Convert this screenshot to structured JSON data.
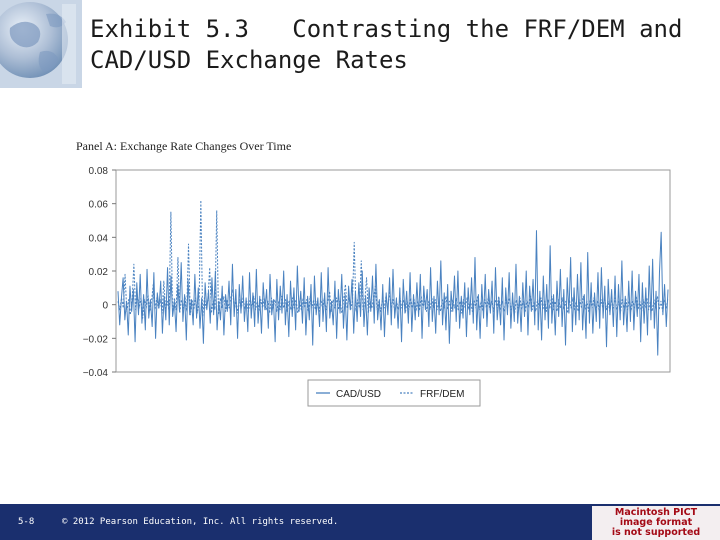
{
  "slide": {
    "title_line1": "Exhibit 5.3   Contrasting the FRF/DEM and",
    "title_line2": "CAD/USD Exchange Rates",
    "slide_number": "5-8",
    "copyright": "© 2012 Pearson Education, Inc. All rights reserved.",
    "pict_notice": [
      "Macintosh PICT",
      "image format",
      "is not supported"
    ]
  },
  "colors": {
    "footer_bg": "#1a2f6e",
    "series_color": "#4a82c0",
    "pict_text": "#a40a16"
  },
  "chart_data": {
    "type": "line",
    "title": "Panel A: Exchange Rate Changes Over Time",
    "xlabel": "",
    "ylabel": "",
    "ylim": [
      -0.04,
      0.08
    ],
    "yticks": [
      0.08,
      0.06,
      0.04,
      0.02,
      0,
      -0.02,
      -0.04
    ],
    "ytick_labels": [
      "0.08",
      "0.06",
      "0.04",
      "0.02",
      "0",
      "−0.02",
      "−0.04"
    ],
    "grid": false,
    "legend_position": "bottom-center",
    "series": [
      {
        "name": "CAD/USD",
        "style": "solid",
        "values": [
          0.008,
          -0.012,
          0.004,
          0.016,
          -0.009,
          0.002,
          -0.018,
          0.011,
          -0.004,
          0.009,
          -0.022,
          0.013,
          -0.006,
          0.018,
          -0.011,
          0.006,
          -0.015,
          0.021,
          -0.008,
          0.003,
          -0.013,
          0.019,
          -0.02,
          0.007,
          -0.002,
          0.014,
          -0.017,
          0.005,
          -0.009,
          0.022,
          -0.012,
          0.017,
          -0.007,
          0.002,
          -0.016,
          0.012,
          -0.004,
          0.025,
          -0.01,
          0.006,
          -0.021,
          0.015,
          -0.006,
          0.003,
          -0.012,
          0.018,
          -0.008,
          0.01,
          -0.014,
          0.004,
          -0.023,
          0.013,
          -0.003,
          0.008,
          -0.011,
          0.016,
          -0.006,
          0.02,
          -0.015,
          0.002,
          -0.009,
          0.011,
          -0.018,
          0.006,
          -0.004,
          0.014,
          -0.012,
          0.024,
          -0.007,
          0.009,
          -0.02,
          0.012,
          -0.005,
          0.017,
          -0.01,
          0.004,
          -0.016,
          0.019,
          -0.008,
          0.007,
          -0.013,
          0.021,
          -0.011,
          0.005,
          -0.017,
          0.013,
          -0.003,
          0.009,
          -0.014,
          0.018,
          -0.006,
          0.003,
          -0.022,
          0.015,
          -0.009,
          0.011,
          -0.005,
          0.02,
          -0.012,
          0.006,
          -0.019,
          0.014,
          -0.007,
          0.01,
          -0.015,
          0.023,
          -0.004,
          0.008,
          -0.011,
          0.016,
          -0.018,
          0.005,
          -0.009,
          0.012,
          -0.024,
          0.017,
          -0.006,
          0.004,
          -0.013,
          0.019,
          -0.01,
          0.007,
          -0.016,
          0.022,
          -0.008,
          0.002,
          -0.012,
          0.014,
          -0.02,
          0.009,
          -0.005,
          0.018,
          -0.014,
          0.006,
          -0.021,
          0.011,
          -0.003,
          0.015,
          -0.017,
          0.008,
          -0.01,
          0.013,
          -0.007,
          0.02,
          -0.013,
          0.005,
          -0.018,
          0.01,
          -0.004,
          0.017,
          -0.011,
          0.024,
          -0.009,
          0.003,
          -0.015,
          0.012,
          -0.019,
          0.007,
          -0.006,
          0.016,
          -0.012,
          0.021,
          -0.008,
          0.004,
          -0.014,
          0.01,
          -0.022,
          0.015,
          -0.005,
          0.008,
          -0.011,
          0.019,
          -0.016,
          0.006,
          -0.009,
          0.013,
          -0.007,
          0.018,
          -0.02,
          0.011,
          -0.003,
          0.009,
          -0.013,
          0.022,
          -0.01,
          0.005,
          -0.017,
          0.014,
          -0.006,
          0.026,
          -0.012,
          0.007,
          -0.015,
          0.012,
          -0.023,
          0.008,
          -0.004,
          0.017,
          -0.01,
          0.02,
          -0.014,
          0.005,
          -0.008,
          0.013,
          -0.019,
          0.01,
          -0.006,
          0.016,
          -0.011,
          0.028,
          -0.015,
          0.006,
          -0.02,
          0.012,
          -0.008,
          0.018,
          -0.013,
          0.009,
          -0.005,
          0.014,
          -0.017,
          0.022,
          -0.009,
          0.004,
          -0.012,
          0.016,
          -0.021,
          0.01,
          -0.006,
          0.019,
          -0.014,
          0.007,
          -0.01,
          0.024,
          -0.011,
          0.005,
          -0.016,
          0.013,
          -0.007,
          0.02,
          -0.018,
          0.011,
          -0.004,
          0.015,
          -0.012,
          0.044,
          -0.015,
          0.008,
          -0.021,
          0.017,
          -0.009,
          0.012,
          -0.014,
          0.035,
          -0.011,
          0.006,
          -0.018,
          0.014,
          -0.007,
          0.021,
          -0.013,
          0.009,
          -0.024,
          0.016,
          -0.005,
          0.028,
          -0.016,
          0.01,
          -0.012,
          0.018,
          -0.009,
          0.025,
          -0.015,
          0.006,
          -0.02,
          0.031,
          -0.011,
          0.013,
          -0.017,
          0.007,
          -0.01,
          0.019,
          -0.014,
          0.022,
          -0.008,
          0.011,
          -0.025,
          0.015,
          -0.006,
          0.009,
          -0.013,
          0.017,
          -0.019,
          0.012,
          -0.009,
          0.026,
          -0.012,
          0.005,
          -0.016,
          0.014,
          -0.01,
          0.02,
          -0.015,
          0.008,
          -0.007,
          0.018,
          -0.022,
          0.013,
          -0.011,
          0.01,
          -0.018,
          0.023,
          -0.009,
          0.027,
          -0.014,
          0.008,
          -0.03,
          0.019,
          0.043,
          -0.006,
          0.012,
          -0.013,
          0.009
        ]
      },
      {
        "name": "FRF/DEM",
        "style": "dashed",
        "values": [
          0.002,
          -0.003,
          0.004,
          -0.002,
          0.018,
          -0.004,
          0.003,
          -0.006,
          0.002,
          0.024,
          -0.003,
          0.005,
          -0.002,
          0.004,
          -0.008,
          0.003,
          -0.002,
          0.006,
          -0.004,
          0.002,
          0.012,
          -0.003,
          0.004,
          -0.002,
          0.003,
          -0.005,
          0.014,
          -0.003,
          0.002,
          -0.004,
          0.055,
          -0.006,
          0.004,
          -0.003,
          0.028,
          -0.005,
          0.003,
          -0.002,
          0.005,
          -0.004,
          0.036,
          -0.006,
          0.003,
          -0.003,
          0.004,
          -0.005,
          0.002,
          0.062,
          -0.007,
          0.004,
          -0.002,
          0.003,
          0.022,
          -0.005,
          0.003,
          -0.003,
          0.056,
          -0.006,
          0.004,
          -0.002,
          0.005,
          -0.004,
          0.003,
          -0.002,
          0.004,
          0.009,
          -0.003,
          0.002,
          -0.005,
          0.003,
          -0.002,
          0.004,
          -0.003,
          0.002,
          -0.004,
          0.003,
          -0.002,
          0.005,
          -0.003,
          0.002,
          -0.004,
          0.003,
          -0.002,
          0.004,
          -0.003,
          0.002,
          -0.005,
          0.004,
          -0.002,
          0.003,
          -0.004,
          0.002,
          -0.003,
          0.005,
          -0.002,
          0.003,
          -0.004,
          0.002,
          -0.003,
          0.004,
          -0.002,
          0.003,
          -0.005,
          0.002,
          -0.003,
          0.004,
          -0.002,
          0.003,
          -0.004,
          0.005,
          -0.002,
          0.003,
          -0.003,
          0.002,
          -0.004,
          0.003,
          -0.002,
          0.004,
          -0.003,
          0.002,
          0.008,
          -0.004,
          0.003,
          -0.002,
          0.004,
          -0.003,
          0.002,
          -0.005,
          0.003,
          0.012,
          -0.002,
          0.004,
          -0.003,
          0.002,
          0.037,
          -0.004,
          0.003,
          -0.002,
          0.026,
          -0.003,
          0.002,
          0.016,
          -0.005,
          0.003,
          -0.002,
          0.004,
          0.011,
          -0.003,
          0.002,
          -0.004,
          0.003,
          -0.002,
          0.005,
          -0.003,
          0.008,
          -0.002,
          0.003,
          -0.004,
          0.002,
          -0.003,
          0.004,
          -0.002,
          0.003,
          -0.005,
          0.002,
          -0.003,
          0.004,
          -0.002,
          0.003,
          -0.004,
          0.002,
          -0.003,
          0.005,
          -0.002,
          0.003,
          -0.004,
          0.002,
          -0.003,
          0.004,
          -0.002,
          0.003,
          -0.003,
          0.002,
          -0.004,
          0.003,
          -0.002,
          0.005,
          -0.003,
          0.002,
          -0.004,
          0.003,
          -0.002,
          0.004,
          -0.003,
          0.002,
          -0.005,
          0.003,
          -0.002,
          0.004,
          -0.003,
          0.002,
          -0.004,
          0.003,
          -0.002,
          0.005,
          -0.003,
          0.002,
          -0.004,
          0.003,
          -0.002,
          0.004,
          -0.003,
          0.002,
          -0.004,
          0.003,
          -0.002,
          0.005,
          -0.003,
          0.002,
          -0.004,
          0.003,
          -0.002,
          0.004,
          -0.003,
          0.002,
          -0.005,
          0.003,
          -0.002,
          0.004,
          -0.003,
          0.002,
          -0.004,
          0.003,
          -0.002,
          0.005,
          -0.003,
          0.002,
          -0.004,
          0.003,
          -0.002,
          0.004,
          -0.003,
          0.002,
          -0.004,
          0.003,
          -0.002,
          0.005,
          -0.003,
          0.002,
          -0.004,
          0.003,
          -0.002,
          0.004,
          -0.003,
          0.002,
          -0.005,
          0.003,
          -0.002,
          0.004,
          -0.003,
          0.002,
          -0.004,
          0.003,
          -0.002,
          0.005,
          -0.003,
          0.002,
          -0.004,
          0.003,
          -0.002,
          0.004,
          -0.003,
          0.002,
          -0.004,
          0.003,
          -0.002,
          0.005,
          -0.003,
          0.002,
          -0.004,
          0.003,
          -0.002,
          0.004,
          -0.003,
          0.002,
          -0.005,
          0.003,
          -0.002,
          0.004,
          -0.003,
          0.002,
          -0.004,
          0.003,
          -0.002,
          0.005,
          -0.003,
          0.002,
          -0.004,
          0.003,
          -0.002,
          0.004,
          -0.003,
          0.002,
          -0.004,
          0.003,
          -0.002,
          0.005,
          -0.003,
          0.002,
          -0.004,
          0.003,
          -0.002,
          0.004
        ]
      }
    ]
  }
}
